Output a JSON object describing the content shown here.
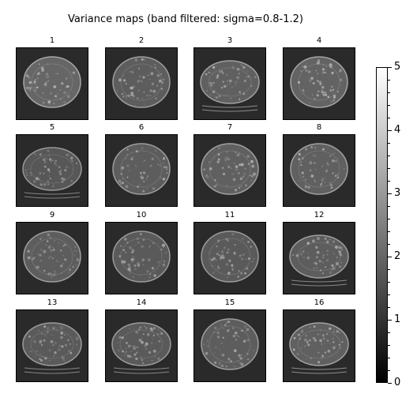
{
  "chart_data": {
    "type": "heatmap",
    "title": "Variance maps (band filtered: sigma=0.8-1.2)",
    "panels": [
      {
        "label": "1",
        "shape": "round",
        "brightness": 0.95,
        "ribbed": false
      },
      {
        "label": "2",
        "shape": "round",
        "brightness": 0.8,
        "ribbed": false
      },
      {
        "label": "3",
        "shape": "wide",
        "brightness": 0.85,
        "ribbed": true
      },
      {
        "label": "4",
        "shape": "round",
        "brightness": 0.9,
        "ribbed": false
      },
      {
        "label": "5",
        "shape": "wide",
        "brightness": 0.7,
        "ribbed": true
      },
      {
        "label": "6",
        "shape": "round",
        "brightness": 0.8,
        "ribbed": false
      },
      {
        "label": "7",
        "shape": "round",
        "brightness": 0.85,
        "ribbed": false
      },
      {
        "label": "8",
        "shape": "round",
        "brightness": 0.85,
        "ribbed": false
      },
      {
        "label": "9",
        "shape": "round",
        "brightness": 0.8,
        "ribbed": false
      },
      {
        "label": "10",
        "shape": "round",
        "brightness": 0.75,
        "ribbed": false
      },
      {
        "label": "11",
        "shape": "round",
        "brightness": 0.75,
        "ribbed": false
      },
      {
        "label": "12",
        "shape": "wide",
        "brightness": 0.8,
        "ribbed": true
      },
      {
        "label": "13",
        "shape": "wide",
        "brightness": 0.75,
        "ribbed": true
      },
      {
        "label": "14",
        "shape": "wide",
        "brightness": 0.75,
        "ribbed": true
      },
      {
        "label": "15",
        "shape": "round",
        "brightness": 0.8,
        "ribbed": false
      },
      {
        "label": "16",
        "shape": "wide",
        "brightness": 0.85,
        "ribbed": true
      }
    ],
    "colorbar": {
      "colormap": "gray",
      "range": [
        0,
        5
      ],
      "ticks": [
        "0",
        "1",
        "2",
        "3",
        "4",
        "5"
      ],
      "minor_ticks_per_major": 5
    }
  }
}
